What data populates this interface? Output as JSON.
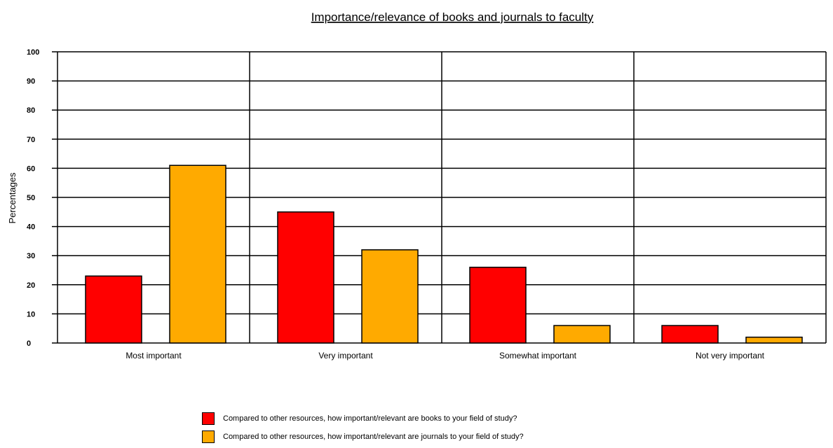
{
  "chart_data": {
    "type": "bar",
    "title": "Importance/relevance of books and journals to faculty",
    "ylabel": "Percentages",
    "xlabel": "",
    "ylim": [
      0,
      100
    ],
    "yticks": [
      0,
      10,
      20,
      30,
      40,
      50,
      60,
      70,
      80,
      90,
      100
    ],
    "grid": true,
    "legend_position": "bottom",
    "categories": [
      "Most important",
      "Very important",
      "Somewhat important",
      "Not very important"
    ],
    "series": [
      {
        "name": "Compared to other resources, how important/relevant are books to your field of study?",
        "values": [
          23,
          45,
          26,
          6
        ],
        "color": "#ff0000"
      },
      {
        "name": "Compared to other resources, how important/relevant are journals to your field of study?",
        "values": [
          61,
          32,
          6,
          2
        ],
        "color": "#ffaa00"
      }
    ]
  }
}
